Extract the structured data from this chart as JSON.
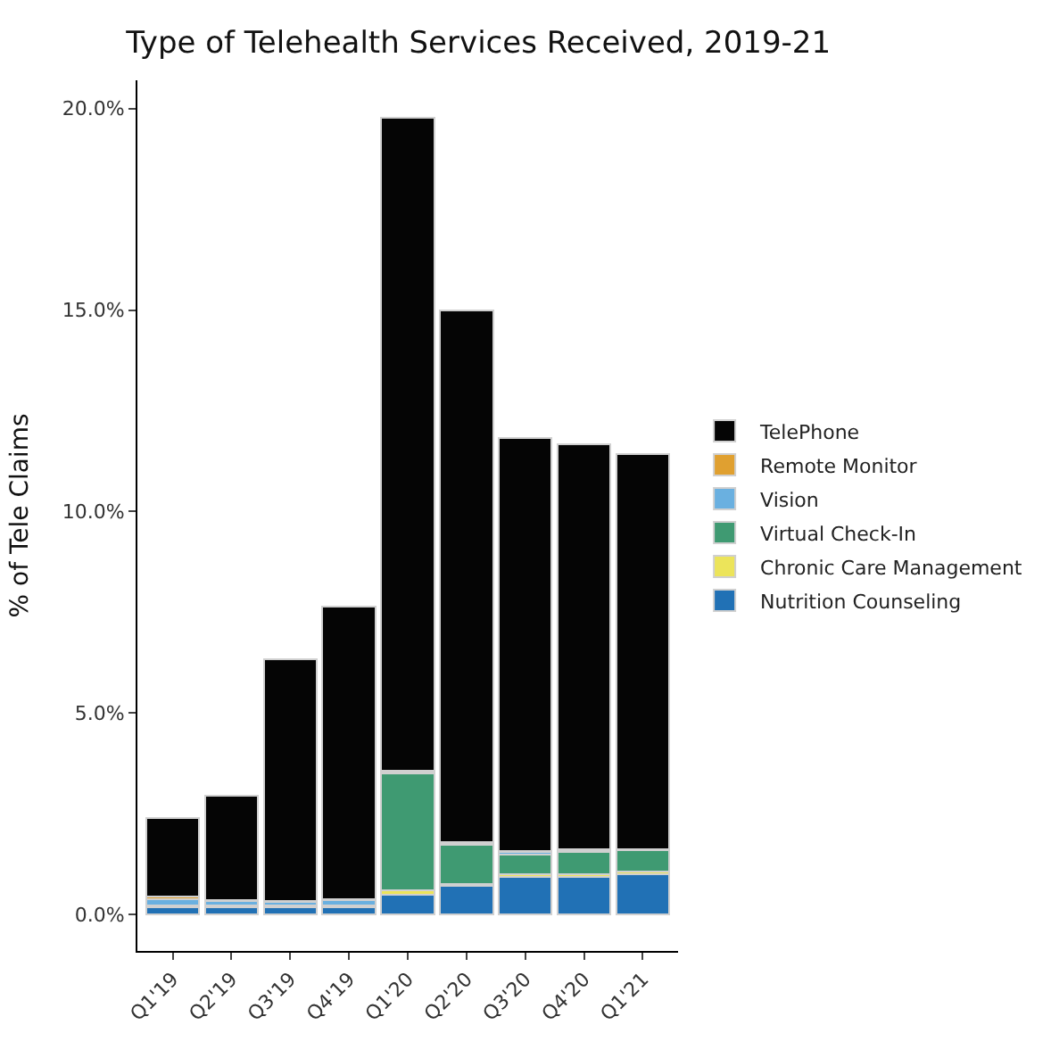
{
  "chart_data": {
    "type": "bar",
    "title": "Type of Telehealth Services Received, 2019-21",
    "ylabel": "% of Tele Claims",
    "stacked": true,
    "categories": [
      "Q1'19",
      "Q2'19",
      "Q3'19",
      "Q4'19",
      "Q1'20",
      "Q2'20",
      "Q3'20",
      "Q4'20",
      "Q1'21"
    ],
    "series": [
      {
        "name": "Nutrition Counseling",
        "color": "#2171b5",
        "values": [
          0.18,
          0.18,
          0.18,
          0.18,
          0.5,
          0.72,
          0.93,
          0.93,
          1.0
        ]
      },
      {
        "name": "Chronic Care Management",
        "color": "#ece45a",
        "values": [
          0.02,
          0.02,
          0.02,
          0.02,
          0.1,
          0.05,
          0.07,
          0.07,
          0.07
        ]
      },
      {
        "name": "Virtual Check-In",
        "color": "#3f9a72",
        "values": [
          0.03,
          0.02,
          0.02,
          0.02,
          2.9,
          0.96,
          0.5,
          0.55,
          0.52
        ]
      },
      {
        "name": "Vision",
        "color": "#6ab0e0",
        "values": [
          0.15,
          0.12,
          0.1,
          0.15,
          0.02,
          0.05,
          0.05,
          0.02,
          0.02
        ]
      },
      {
        "name": "Remote Monitor",
        "color": "#e0a030",
        "values": [
          0.07,
          0.02,
          0.02,
          0.02,
          0.05,
          0.02,
          0.02,
          0.05,
          0.02
        ]
      },
      {
        "name": "TelePhone",
        "color": "#050505",
        "values": [
          1.95,
          2.6,
          6.0,
          7.25,
          16.2,
          13.2,
          10.25,
          10.05,
          9.8
        ]
      }
    ],
    "ylim": [
      -0.9,
      20.7
    ],
    "yticks": [
      {
        "value": 0,
        "label": "0.0%"
      },
      {
        "value": 5,
        "label": "5.0%"
      },
      {
        "value": 10,
        "label": "10.0%"
      },
      {
        "value": 15,
        "label": "15.0%"
      },
      {
        "value": 20,
        "label": "20.0%"
      }
    ],
    "grid": false,
    "legend": "right"
  }
}
